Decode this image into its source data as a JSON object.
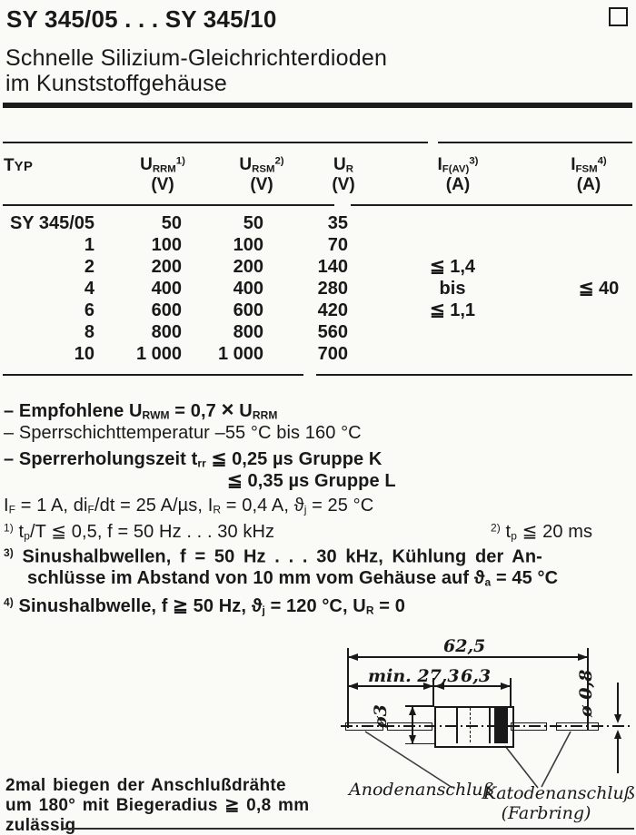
{
  "page": {
    "title": "SY 345/05 . . . SY 345/10",
    "subtitle_line1": "Schnelle Silizium-Gleichrichterdioden",
    "subtitle_line2": "im Kunststoffgehäuse"
  },
  "table": {
    "typ_header": [
      [
        "T",
        "n"
      ],
      [
        "YP",
        "sc"
      ]
    ],
    "headers": [
      {
        "main": [
          [
            "U",
            "n"
          ],
          [
            "RRM",
            "b"
          ],
          [
            "1)",
            "p"
          ]
        ],
        "unit": "(V)"
      },
      {
        "main": [
          [
            "U",
            "n"
          ],
          [
            "RSM",
            "b"
          ],
          [
            "2)",
            "p"
          ]
        ],
        "unit": "(V)"
      },
      {
        "main": [
          [
            "U",
            "n"
          ],
          [
            "R",
            "b"
          ]
        ],
        "unit": "(V)"
      },
      {
        "main": [
          [
            "I",
            "n"
          ],
          [
            "F(AV)",
            "b"
          ],
          [
            "3)",
            "p"
          ]
        ],
        "unit": "(A)"
      },
      {
        "main": [
          [
            "I",
            "n"
          ],
          [
            "FSM",
            "b"
          ],
          [
            "4)",
            "p"
          ]
        ],
        "unit": "(A)"
      }
    ],
    "rows": [
      [
        "SY 345/05",
        "50",
        "50",
        "35",
        "",
        ""
      ],
      [
        "1",
        "100",
        "100",
        "70",
        "",
        ""
      ],
      [
        "2",
        "200",
        "200",
        "140",
        "≦ 1,4",
        ""
      ],
      [
        "4",
        "400",
        "400",
        "280",
        "bis",
        "≦ 40"
      ],
      [
        "6",
        "600",
        "600",
        "420",
        "≦ 1,1",
        ""
      ],
      [
        "8",
        "800",
        "800",
        "560",
        "",
        ""
      ],
      [
        "10",
        "1 000",
        "1 000",
        "700",
        "",
        ""
      ]
    ]
  },
  "notes": {
    "n1": [
      [
        "– Empfohlene U",
        "n"
      ],
      [
        "RWM",
        "b"
      ],
      [
        " = 0,7 ",
        "n"
      ],
      [
        "×",
        "x"
      ],
      [
        " U",
        "n"
      ],
      [
        "RRM",
        "b"
      ]
    ],
    "n2": [
      [
        "– Sperrschichttemperatur –55 °C bis 160 °C",
        "n"
      ]
    ],
    "n3": [
      [
        "– Sperrerholungszeit t",
        "n"
      ],
      [
        "rr",
        "b"
      ],
      [
        " ≦ 0,25 µs Gruppe K",
        "n"
      ]
    ],
    "n3b": [
      [
        "≦ 0,35 µs Gruppe L",
        "n"
      ]
    ],
    "conditions": [
      [
        "I",
        "n"
      ],
      [
        "F",
        "b"
      ],
      [
        " = 1 A, di",
        "n"
      ],
      [
        "F",
        "b"
      ],
      [
        "/dt = 25 A/µs, I",
        "n"
      ],
      [
        "R",
        "b"
      ],
      [
        " = 0,4 A, ϑ",
        "n"
      ],
      [
        "j",
        "b"
      ],
      [
        " = 25 °C",
        "n"
      ]
    ],
    "fn1": [
      [
        "1)",
        "p"
      ],
      [
        " t",
        "n"
      ],
      [
        "p",
        "b"
      ],
      [
        "/T ≦ 0,5, f = 50 Hz . . . 30 kHz",
        "n"
      ]
    ],
    "fn2": [
      [
        "2)",
        "p"
      ],
      [
        " t",
        "n"
      ],
      [
        "p",
        "b"
      ],
      [
        " ≦ 20 ms",
        "n"
      ]
    ],
    "fn3a": [
      [
        "3)",
        "p"
      ],
      [
        " Sinushalbwellen, f = 50 Hz . . . 30 kHz, Kühlung der An-",
        "n"
      ]
    ],
    "fn3b": [
      [
        "schlüsse im Abstand von 10 mm vom Gehäuse auf ϑ",
        "n"
      ],
      [
        "a",
        "b"
      ],
      [
        " = 45 °C",
        "n"
      ]
    ],
    "fn4": [
      [
        "4)",
        "p"
      ],
      [
        " Sinushalbwelle, f ≧ 50 Hz, ϑ",
        "n"
      ],
      [
        "j",
        "b"
      ],
      [
        " = 120 °C, U",
        "n"
      ],
      [
        "R",
        "b"
      ],
      [
        " = 0",
        "n"
      ]
    ]
  },
  "drawing": {
    "dim_overall": "62,5",
    "dim_lead": "min. 27,3",
    "dim_body": "6,3",
    "dia_body": "ø3",
    "dia_wire": "ø 0,8",
    "label_anode": "Anodenanschluß",
    "label_cathode": "Katodenanschluß",
    "label_ring": "(Farbring)"
  },
  "bend_note": {
    "line1": "2mal biegen der Anschlußdrähte",
    "line2": "um 180° mit Biegeradius ≧ 0,8 mm",
    "line3": "zulässig"
  },
  "colors": {
    "ink": "#191919",
    "paper": "#fafaf7"
  }
}
